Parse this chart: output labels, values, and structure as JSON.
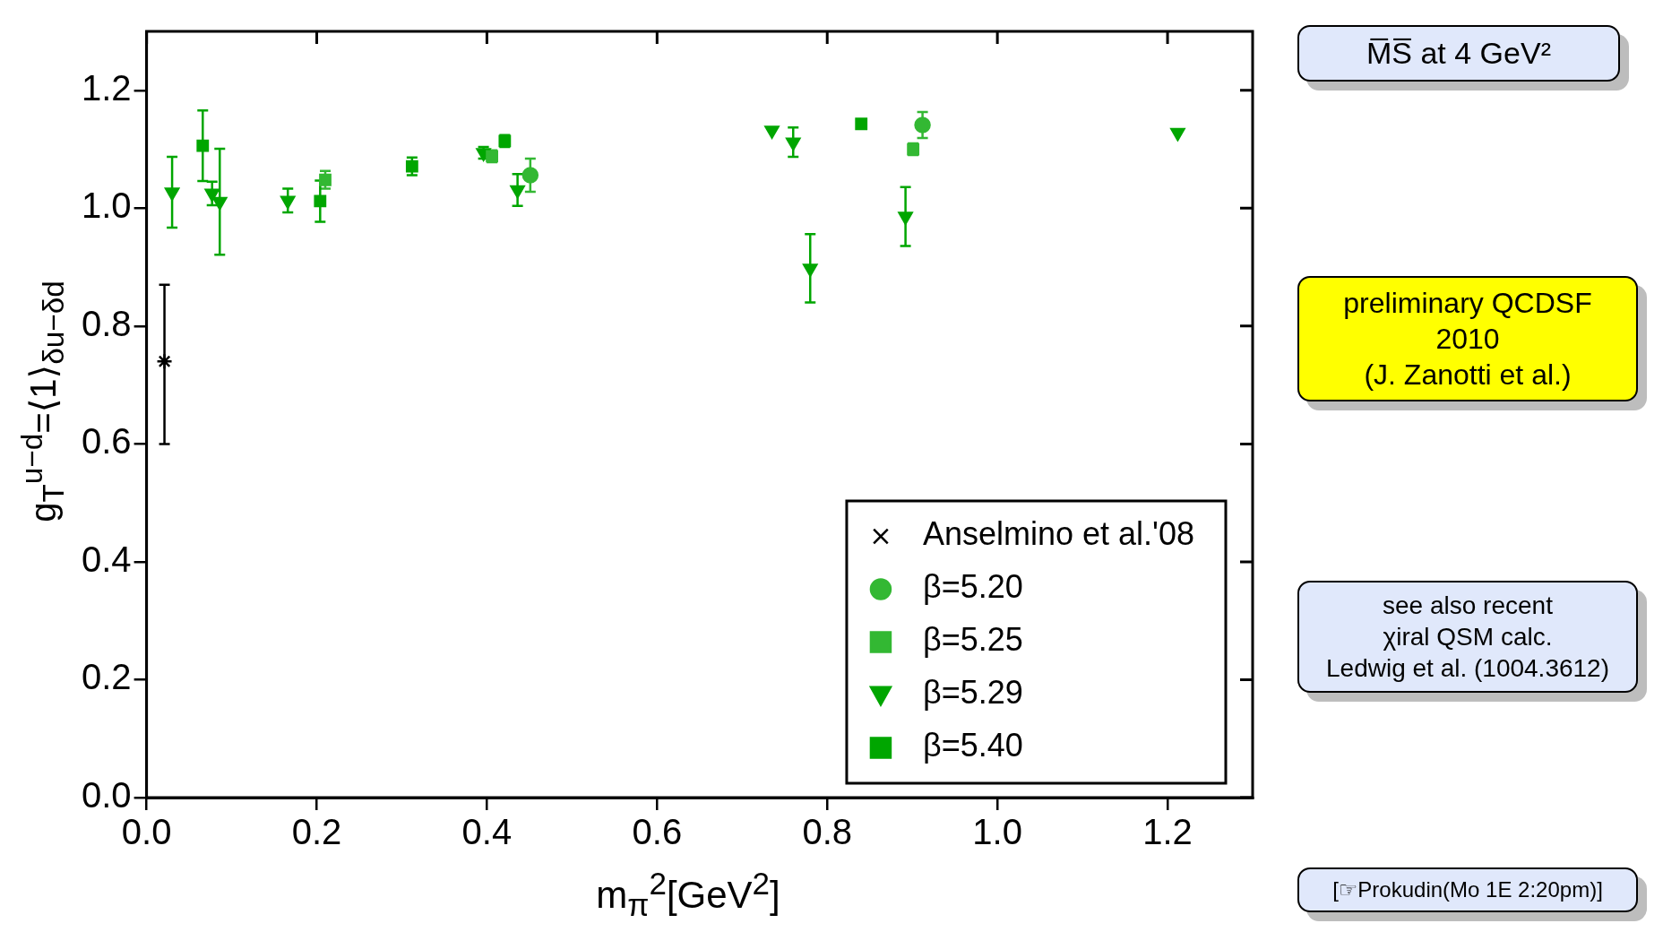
{
  "chart_data": {
    "type": "scatter",
    "xlabel": "m$_{π}$$^{2}$[GeV$^{2}$]",
    "ylabel": "g$_{T}$$^{u−d}$=⟨1⟩$_{δu−δd}$",
    "xlim": [
      0,
      1.3
    ],
    "ylim": [
      0,
      1.3
    ],
    "xticks": [
      {
        "value": 0,
        "label": "0.0"
      },
      {
        "value": 0.2,
        "label": "0.2"
      },
      {
        "value": 0.4,
        "label": "0.4"
      },
      {
        "value": 0.6,
        "label": "0.6"
      },
      {
        "value": 0.8,
        "label": "0.8"
      },
      {
        "value": 1.0,
        "label": "1.0"
      },
      {
        "value": 1.2,
        "label": "1.2"
      }
    ],
    "yticks": [
      {
        "value": 0,
        "label": "0.0"
      },
      {
        "value": 0.2,
        "label": "0.2"
      },
      {
        "value": 0.4,
        "label": "0.4"
      },
      {
        "value": 0.6,
        "label": "0.6"
      },
      {
        "value": 0.8,
        "label": "0.8"
      },
      {
        "value": 1.0,
        "label": "1.0"
      },
      {
        "value": 1.2,
        "label": "1.2"
      }
    ],
    "grid": false,
    "legend": "bottom right",
    "series": [
      {
        "name": "Anselmino et al.'08",
        "color": "#000000",
        "marker": "cross",
        "x": [
          0.021
        ],
        "values": [
          0.74
        ],
        "errors": [
          [
            0.6,
            0.87
          ]
        ]
      },
      {
        "name": "β=5.20",
        "color": "#33b833",
        "marker": "circle",
        "x": [
          0.451,
          0.912
        ],
        "values": [
          1.056,
          1.141
        ],
        "errors": [
          0.028,
          0.022
        ]
      },
      {
        "name": "β=5.25",
        "color": "#33b833",
        "marker": "square",
        "x": [
          0.21,
          0.406,
          0.901
        ],
        "values": [
          1.048,
          1.088,
          1.1
        ],
        "errors": [
          0.015,
          0.01,
          0.01
        ]
      },
      {
        "name": "β=5.29",
        "color": "#00a600",
        "marker": "triangle",
        "x": [
          0.03,
          0.077,
          0.086,
          0.166,
          0.396,
          0.436,
          0.735,
          0.76,
          0.78,
          0.892,
          1.212
        ],
        "values": [
          1.027,
          1.025,
          1.011,
          1.013,
          1.094,
          1.031,
          1.132,
          1.112,
          0.898,
          0.986,
          1.128
        ],
        "errors": [
          0.06,
          0.02,
          0.09,
          0.02,
          0.01,
          0.027,
          null,
          0.025,
          0.058,
          0.05,
          null
        ]
      },
      {
        "name": "β=5.40",
        "color": "#00a600",
        "marker": "square",
        "x": [
          0.066,
          0.204,
          0.312,
          0.421,
          0.84
        ],
        "values": [
          1.106,
          1.012,
          1.071,
          1.114,
          1.143
        ],
        "errors": [
          0.06,
          0.035,
          0.015,
          0.01,
          null
        ]
      }
    ],
    "annotations": [
      "M̅S̅ at 4 GeV²",
      "preliminary QCDSF 2010\n(J. Zanotti et al.)",
      "see also recent\nχiral QSM calc.\nLedwig et al. (1004.3612)",
      "[☞Prokudin(Mo 1E 2:20pm)]"
    ]
  }
}
